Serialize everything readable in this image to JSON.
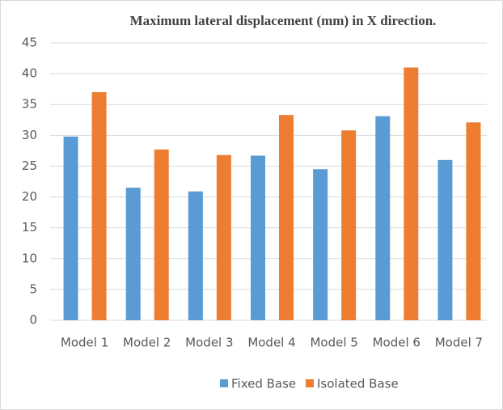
{
  "chart_data": {
    "type": "bar",
    "title": "Maximum lateral displacement (mm) in X direction.",
    "categories": [
      "Model 1",
      "Model 2",
      "Model 3",
      "Model 4",
      "Model 5",
      "Model 6",
      "Model 7"
    ],
    "series": [
      {
        "name": "Fixed Base",
        "color": "#5b9bd5",
        "values": [
          29.8,
          21.5,
          20.9,
          26.7,
          24.5,
          33.1,
          26.0
        ]
      },
      {
        "name": "Isolated Base",
        "color": "#ed7d31",
        "values": [
          37.0,
          27.7,
          26.8,
          33.3,
          30.8,
          41.0,
          32.1
        ]
      }
    ],
    "ylim": [
      0,
      45
    ],
    "yticks": [
      0,
      5,
      10,
      15,
      20,
      25,
      30,
      35,
      40,
      45
    ],
    "grid": true,
    "legend": "bottom"
  }
}
